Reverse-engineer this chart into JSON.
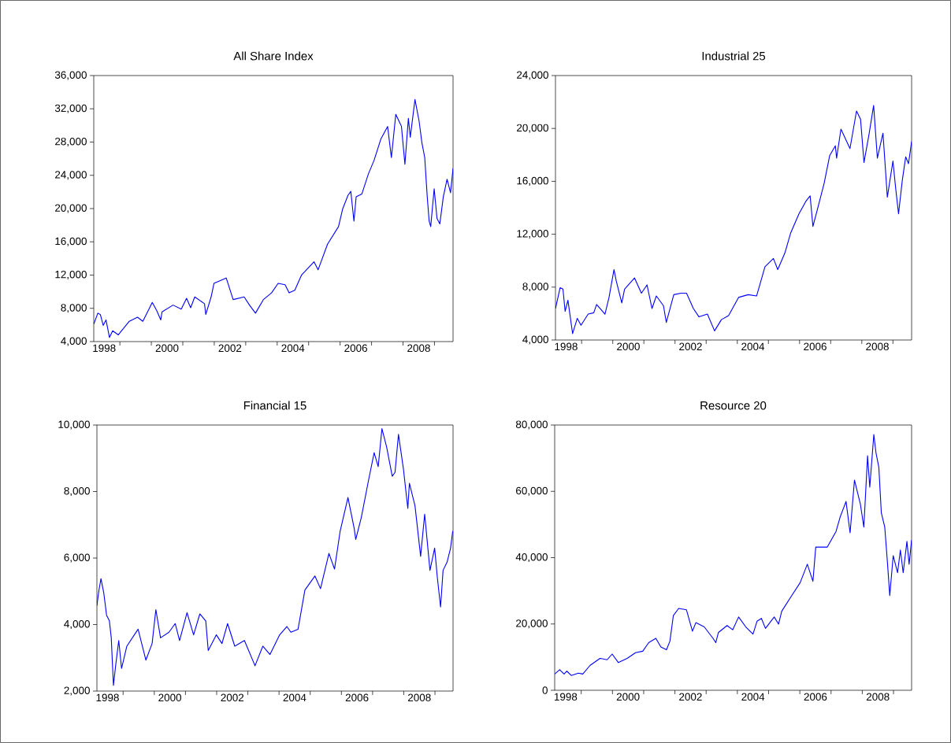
{
  "chart_data": [
    {
      "type": "line",
      "title": "All Share Index",
      "color": "#0000ff",
      "xlim": [
        1998.17,
        2009.59
      ],
      "ylim": [
        4000,
        36000
      ],
      "xticks": [
        {
          "value": 1998.5,
          "label": "1998"
        },
        {
          "value": 1999,
          "label": null
        },
        {
          "value": 2000,
          "label": null
        },
        {
          "value": 2000.5,
          "label": "2000"
        },
        {
          "value": 2001,
          "label": null
        },
        {
          "value": 2002,
          "label": null
        },
        {
          "value": 2002.5,
          "label": "2002"
        },
        {
          "value": 2003,
          "label": null
        },
        {
          "value": 2004,
          "label": null
        },
        {
          "value": 2004.5,
          "label": "2004"
        },
        {
          "value": 2005,
          "label": null
        },
        {
          "value": 2006,
          "label": null
        },
        {
          "value": 2006.5,
          "label": "2006"
        },
        {
          "value": 2007,
          "label": null
        },
        {
          "value": 2008,
          "label": null
        },
        {
          "value": 2008.5,
          "label": "2008"
        },
        {
          "value": 2009,
          "label": null
        }
      ],
      "yticks": [
        {
          "value": 4000,
          "label": "4,000"
        },
        {
          "value": 8000,
          "label": "8,000"
        },
        {
          "value": 12000,
          "label": "12,000"
        },
        {
          "value": 16000,
          "label": "16,000"
        },
        {
          "value": 20000,
          "label": "20,000"
        },
        {
          "value": 24000,
          "label": "24,000"
        },
        {
          "value": 28000,
          "label": "28,000"
        },
        {
          "value": 32000,
          "label": "32,000"
        },
        {
          "value": 36000,
          "label": "36,000"
        }
      ],
      "x": [
        1998.17,
        1998.3,
        1998.38,
        1998.47,
        1998.56,
        1998.67,
        1998.77,
        1998.95,
        1999.3,
        1999.56,
        1999.73,
        2000.03,
        2000.17,
        2000.3,
        2000.34,
        2000.69,
        2000.95,
        2001.12,
        2001.25,
        2001.38,
        2001.69,
        2001.73,
        2001.9,
        2001.99,
        2002.38,
        2002.6,
        2002.95,
        2003.12,
        2003.31,
        2003.56,
        2003.82,
        2004.03,
        2004.25,
        2004.38,
        2004.56,
        2004.77,
        2005.17,
        2005.3,
        2005.6,
        2005.95,
        2006.08,
        2006.25,
        2006.34,
        2006.44,
        2006.51,
        2006.69,
        2006.9,
        2007.08,
        2007.3,
        2007.51,
        2007.63,
        2007.77,
        2007.95,
        2008.06,
        2008.17,
        2008.23,
        2008.38,
        2008.51,
        2008.6,
        2008.69,
        2008.77,
        2008.83,
        2008.88,
        2008.99,
        2009.08,
        2009.17,
        2009.28,
        2009.4,
        2009.51,
        2009.59
      ],
      "values": [
        6100,
        7420,
        7250,
        5950,
        6600,
        4490,
        5300,
        4810,
        6440,
        6930,
        6440,
        8720,
        7740,
        6600,
        7580,
        8390,
        7910,
        9210,
        8070,
        9370,
        8560,
        7260,
        9370,
        11000,
        11650,
        9050,
        9370,
        8390,
        7420,
        9050,
        9860,
        11000,
        10840,
        9860,
        10180,
        11980,
        13600,
        12630,
        15720,
        17830,
        19950,
        21580,
        22070,
        18490,
        21410,
        21740,
        24180,
        25810,
        28410,
        29880,
        26130,
        31340,
        29880,
        25320,
        30850,
        28580,
        33130,
        30530,
        27920,
        26130,
        21410,
        18490,
        17830,
        22390,
        18810,
        18160,
        21410,
        23530,
        21900,
        24830
      ]
    },
    {
      "type": "line",
      "title": "Industrial 25",
      "color": "#0000ff",
      "xlim": [
        1998.16,
        2009.6
      ],
      "ylim": [
        4000,
        24000
      ],
      "xticks": [
        {
          "value": 1998.5,
          "label": "1998"
        },
        {
          "value": 1999,
          "label": null
        },
        {
          "value": 2000,
          "label": null
        },
        {
          "value": 2000.5,
          "label": "2000"
        },
        {
          "value": 2001,
          "label": null
        },
        {
          "value": 2002,
          "label": null
        },
        {
          "value": 2002.5,
          "label": "2002"
        },
        {
          "value": 2003,
          "label": null
        },
        {
          "value": 2004,
          "label": null
        },
        {
          "value": 2004.5,
          "label": "2004"
        },
        {
          "value": 2005,
          "label": null
        },
        {
          "value": 2006,
          "label": null
        },
        {
          "value": 2006.5,
          "label": "2006"
        },
        {
          "value": 2007,
          "label": null
        },
        {
          "value": 2008,
          "label": null
        },
        {
          "value": 2008.5,
          "label": "2008"
        },
        {
          "value": 2009,
          "label": null
        }
      ],
      "yticks": [
        {
          "value": 4000,
          "label": "4,000"
        },
        {
          "value": 8000,
          "label": "8,000"
        },
        {
          "value": 12000,
          "label": "12,000"
        },
        {
          "value": 16000,
          "label": "16,000"
        },
        {
          "value": 20000,
          "label": "20,000"
        },
        {
          "value": 24000,
          "label": "24,000"
        }
      ],
      "x": [
        1998.16,
        1998.31,
        1998.4,
        1998.47,
        1998.56,
        1998.71,
        1998.86,
        1998.98,
        1999.21,
        1999.39,
        1999.48,
        1999.75,
        1999.88,
        2000.04,
        2000.11,
        2000.29,
        2000.38,
        2000.7,
        2000.92,
        2001.1,
        2001.26,
        2001.4,
        2001.63,
        2001.72,
        2001.96,
        2002.19,
        2002.37,
        2002.59,
        2002.77,
        2003.04,
        2003.27,
        2003.49,
        2003.72,
        2004.04,
        2004.35,
        2004.62,
        2004.89,
        2005.16,
        2005.3,
        2005.53,
        2005.71,
        2005.98,
        2006.2,
        2006.34,
        2006.43,
        2006.56,
        2006.79,
        2006.97,
        2007.15,
        2007.19,
        2007.33,
        2007.62,
        2007.83,
        2007.96,
        2008.07,
        2008.23,
        2008.38,
        2008.5,
        2008.68,
        2008.82,
        2009.0,
        2009.09,
        2009.18,
        2009.3,
        2009.41,
        2009.5,
        2009.6
      ],
      "values": [
        6380,
        7960,
        7850,
        6170,
        7010,
        4480,
        5640,
        5120,
        5960,
        6060,
        6690,
        5960,
        7220,
        9330,
        8480,
        6800,
        7850,
        8690,
        7540,
        8170,
        6380,
        7330,
        6590,
        5330,
        7430,
        7540,
        7540,
        6380,
        5750,
        5960,
        4690,
        5540,
        5850,
        7220,
        7430,
        7330,
        9540,
        10170,
        9330,
        10590,
        12060,
        13540,
        14480,
        14900,
        12590,
        13750,
        15850,
        17960,
        18690,
        17750,
        19950,
        18480,
        21320,
        20690,
        17430,
        19530,
        21740,
        17750,
        19640,
        14800,
        17540,
        15430,
        13540,
        16060,
        17850,
        17330,
        19010
      ]
    },
    {
      "type": "line",
      "title": "Financial 15",
      "color": "#0000ff",
      "xlim": [
        1998.16,
        2009.58
      ],
      "ylim": [
        2000,
        10000
      ],
      "xticks": [
        {
          "value": 1998.5,
          "label": "1998"
        },
        {
          "value": 1999,
          "label": null
        },
        {
          "value": 2000,
          "label": null
        },
        {
          "value": 2000.5,
          "label": "2000"
        },
        {
          "value": 2001,
          "label": null
        },
        {
          "value": 2002,
          "label": null
        },
        {
          "value": 2002.5,
          "label": "2002"
        },
        {
          "value": 2003,
          "label": null
        },
        {
          "value": 2004,
          "label": null
        },
        {
          "value": 2004.5,
          "label": "2004"
        },
        {
          "value": 2005,
          "label": null
        },
        {
          "value": 2006,
          "label": null
        },
        {
          "value": 2006.5,
          "label": "2006"
        },
        {
          "value": 2007,
          "label": null
        },
        {
          "value": 2008,
          "label": null
        },
        {
          "value": 2008.5,
          "label": "2008"
        },
        {
          "value": 2009,
          "label": null
        }
      ],
      "yticks": [
        {
          "value": 2000,
          "label": "2,000"
        },
        {
          "value": 4000,
          "label": "4,000"
        },
        {
          "value": 6000,
          "label": "6,000"
        },
        {
          "value": 8000,
          "label": "8,000"
        },
        {
          "value": 10000,
          "label": "10,000"
        }
      ],
      "x": [
        1998.16,
        1998.22,
        1998.29,
        1998.38,
        1998.47,
        1998.56,
        1998.62,
        1998.69,
        1998.76,
        1998.86,
        1998.95,
        1999.12,
        1999.48,
        1999.73,
        1999.93,
        2000.05,
        2000.2,
        2000.47,
        2000.67,
        2000.81,
        2001.05,
        2001.26,
        2001.46,
        2001.65,
        2001.73,
        2001.99,
        2002.17,
        2002.35,
        2002.58,
        2002.89,
        2003.23,
        2003.48,
        2003.71,
        2004.02,
        2004.25,
        2004.38,
        2004.61,
        2004.83,
        2005.15,
        2005.33,
        2005.6,
        2005.78,
        2005.96,
        2006.21,
        2006.41,
        2006.46,
        2006.64,
        2006.86,
        2007.05,
        2007.18,
        2007.3,
        2007.45,
        2007.63,
        2007.72,
        2007.83,
        2007.99,
        2008.13,
        2008.18,
        2008.36,
        2008.54,
        2008.67,
        2008.84,
        2008.99,
        2009.08,
        2009.18,
        2009.26,
        2009.39,
        2009.5,
        2009.57
      ],
      "values": [
        4570,
        5000,
        5380,
        4950,
        4280,
        4110,
        3600,
        2170,
        2760,
        3520,
        2680,
        3350,
        3860,
        2930,
        3430,
        4450,
        3600,
        3770,
        4030,
        3520,
        4360,
        3690,
        4320,
        4110,
        3220,
        3690,
        3430,
        4030,
        3350,
        3520,
        2760,
        3350,
        3100,
        3690,
        3940,
        3770,
        3860,
        5040,
        5460,
        5080,
        6140,
        5670,
        6810,
        7820,
        6890,
        6560,
        7230,
        8290,
        9170,
        8750,
        9890,
        9340,
        8460,
        8580,
        9720,
        8670,
        7490,
        8250,
        7570,
        6050,
        7320,
        5630,
        6300,
        5380,
        4530,
        5630,
        5880,
        6300,
        6810
      ]
    },
    {
      "type": "line",
      "title": "Resource 20",
      "color": "#0000ff",
      "xlim": [
        1998.15,
        2009.58
      ],
      "ylim": [
        0,
        80000
      ],
      "xticks": [
        {
          "value": 1998.5,
          "label": "1998"
        },
        {
          "value": 1999,
          "label": null
        },
        {
          "value": 2000,
          "label": null
        },
        {
          "value": 2000.5,
          "label": "2000"
        },
        {
          "value": 2001,
          "label": null
        },
        {
          "value": 2002,
          "label": null
        },
        {
          "value": 2002.5,
          "label": "2002"
        },
        {
          "value": 2003,
          "label": null
        },
        {
          "value": 2004,
          "label": null
        },
        {
          "value": 2004.5,
          "label": "2004"
        },
        {
          "value": 2005,
          "label": null
        },
        {
          "value": 2006,
          "label": null
        },
        {
          "value": 2006.5,
          "label": "2006"
        },
        {
          "value": 2007,
          "label": null
        },
        {
          "value": 2008,
          "label": null
        },
        {
          "value": 2008.5,
          "label": "2008"
        },
        {
          "value": 2009,
          "label": null
        }
      ],
      "yticks": [
        0,
        {
          "value": 20000,
          "label": "20,000"
        },
        {
          "value": 40000,
          "label": "40,000"
        },
        {
          "value": 60000,
          "label": "60,000"
        },
        {
          "value": 80000,
          "label": "80,000"
        }
      ],
      "x": [
        1998.15,
        1998.31,
        1998.45,
        1998.54,
        1998.68,
        1998.91,
        1999.05,
        1999.28,
        1999.6,
        1999.83,
        1999.99,
        2000.19,
        2000.47,
        2000.74,
        2000.97,
        2001.16,
        2001.39,
        2001.55,
        2001.73,
        2001.84,
        2001.95,
        2002.12,
        2002.37,
        2002.56,
        2002.67,
        2002.94,
        2003.22,
        2003.31,
        2003.39,
        2003.67,
        2003.85,
        2004.04,
        2004.27,
        2004.5,
        2004.63,
        2004.77,
        2004.9,
        2005.18,
        2005.32,
        2005.42,
        2005.74,
        2006.01,
        2006.24,
        2006.42,
        2006.51,
        2006.88,
        2007.16,
        2007.29,
        2007.48,
        2007.61,
        2007.75,
        2007.94,
        2008.05,
        2008.17,
        2008.24,
        2008.37,
        2008.44,
        2008.53,
        2008.61,
        2008.72,
        2008.81,
        2008.88,
        2008.99,
        2009.13,
        2009.22,
        2009.31,
        2009.43,
        2009.5,
        2009.58
      ],
      "values": [
        4900,
        6190,
        4900,
        5760,
        4470,
        5160,
        4900,
        7480,
        9630,
        9200,
        10920,
        8340,
        9630,
        11350,
        11780,
        14370,
        15660,
        13070,
        12210,
        14800,
        22540,
        24690,
        24260,
        17810,
        20390,
        19100,
        15660,
        14370,
        17380,
        19530,
        18240,
        22110,
        19100,
        16950,
        20820,
        21680,
        18670,
        22110,
        19960,
        23830,
        28560,
        32430,
        38020,
        32860,
        43180,
        43180,
        47910,
        52210,
        56950,
        47480,
        63400,
        56090,
        49200,
        70710,
        61250,
        77160,
        71570,
        67270,
        53520,
        49200,
        38020,
        28560,
        40600,
        35440,
        42320,
        35440,
        44900,
        38020,
        45330
      ]
    }
  ]
}
